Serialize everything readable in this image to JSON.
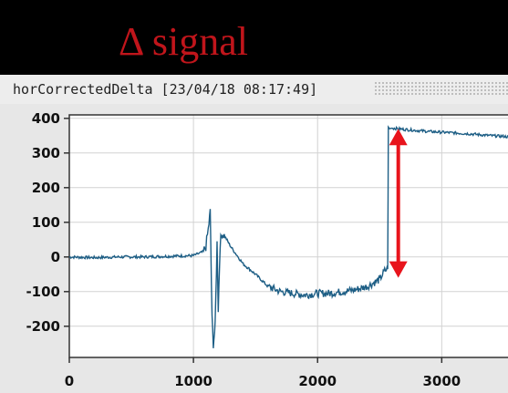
{
  "slide": {
    "title": "Δ signal"
  },
  "window": {
    "title": "horCorrectedDelta  [23/04/18 08:17:49]"
  },
  "colors": {
    "series": "#1d5e85",
    "arrow": "#e8141c",
    "title": "#c0151b",
    "background": "#000000"
  },
  "chart_data": {
    "type": "line",
    "title": "horCorrectedDelta  [23/04/18 08:17:49]",
    "xlabel": "",
    "ylabel": "",
    "xlim": [
      0,
      3600
    ],
    "ylim": [
      -290,
      410
    ],
    "grid": true,
    "x_ticks": [
      0,
      1000,
      2000,
      3000
    ],
    "x_tick_labels": [
      "0",
      "1000",
      "2000",
      "3000"
    ],
    "y_ticks": [
      400,
      300,
      200,
      100,
      0,
      -100,
      -200
    ],
    "y_tick_labels": [
      "400",
      "300",
      "200",
      "100",
      "0",
      "-100",
      "-200"
    ],
    "series": [
      {
        "x": [
          0,
          200,
          400,
          600,
          800,
          1000,
          1080,
          1100,
          1120,
          1135,
          1150,
          1160,
          1175,
          1190,
          1200,
          1215,
          1230,
          1260,
          1300,
          1350,
          1400,
          1500,
          1600,
          1700,
          1800,
          1900,
          2000,
          2100,
          2200,
          2300,
          2400,
          2500,
          2540,
          2565,
          2570,
          2580,
          2600,
          2700,
          2800,
          2900,
          3000,
          3100,
          3200,
          3300,
          3400,
          3500,
          3550
        ],
        "y": [
          0,
          -2,
          0,
          0,
          2,
          4,
          15,
          30,
          80,
          130,
          -180,
          -250,
          -200,
          40,
          -150,
          40,
          70,
          55,
          30,
          5,
          -20,
          -50,
          -85,
          -100,
          -105,
          -110,
          -105,
          -105,
          -100,
          -95,
          -85,
          -65,
          -40,
          -35,
          375,
          370,
          372,
          368,
          365,
          362,
          360,
          358,
          356,
          353,
          350,
          348,
          346
        ]
      }
    ],
    "annotations": [
      {
        "type": "double-arrow",
        "x": 2650,
        "y_from": -60,
        "y_to": 370,
        "color": "#e8141c"
      }
    ]
  }
}
